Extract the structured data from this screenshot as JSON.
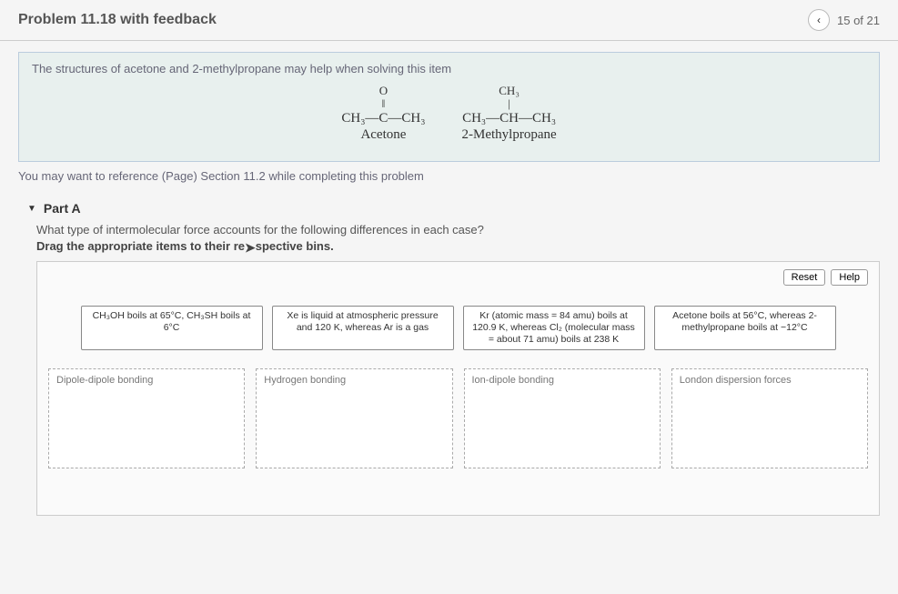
{
  "header": {
    "title": "Problem 11.18 with feedback",
    "prev_icon": "‹",
    "page_indicator": "15 of 21"
  },
  "intro": {
    "text": "The structures of acetone and 2-methylpropane may help when solving this item",
    "structure1": {
      "top": "O",
      "line2": "‖",
      "main": "CH₃—C—CH₃",
      "name": "Acetone"
    },
    "structure2": {
      "top": "CH₃",
      "line2": "|",
      "main": "CH₃—CH—CH₃",
      "name": "2-Methylpropane"
    },
    "reference": "You may want to reference (Page) Section 11.2 while completing this problem"
  },
  "part": {
    "label": "Part A",
    "question": "What type of intermolecular force accounts for the following differences in each case?",
    "instruction_a": "Drag the appropriate items to their re",
    "instruction_b": "spective bins."
  },
  "buttons": {
    "reset": "Reset",
    "help": "Help"
  },
  "items": {
    "item1": "CH₃OH boils at 65°C,\nCH₃SH boils at 6°C",
    "item2": "Xe is liquid at atmospheric pressure and 120 K, whereas Ar is a gas",
    "item3": "Kr (atomic mass = 84 amu) boils at 120.9 K, whereas Cl₂ (molecular mass = about 71 amu) boils at 238 K",
    "item4": "Acetone boils at 56°C, whereas 2-methylpropane boils at −12°C"
  },
  "bins": {
    "bin1": "Dipole-dipole bonding",
    "bin2": "Hydrogen bonding",
    "bin3": "Ion-dipole bonding",
    "bin4": "London dispersion forces"
  }
}
